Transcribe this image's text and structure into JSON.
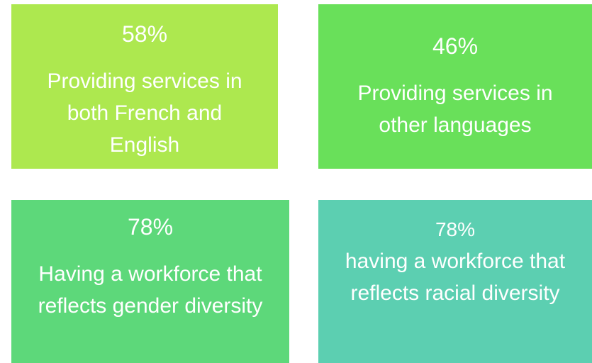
{
  "tiles": [
    {
      "percent": "58%",
      "label": "Providing services in both French and English"
    },
    {
      "percent": "46%",
      "label": "Providing services in other languages"
    },
    {
      "percent": "78%",
      "label": "Having a workforce that reflects gender diversity"
    },
    {
      "percent": "78%",
      "label": "having a workforce that reflects racial diversity"
    }
  ]
}
